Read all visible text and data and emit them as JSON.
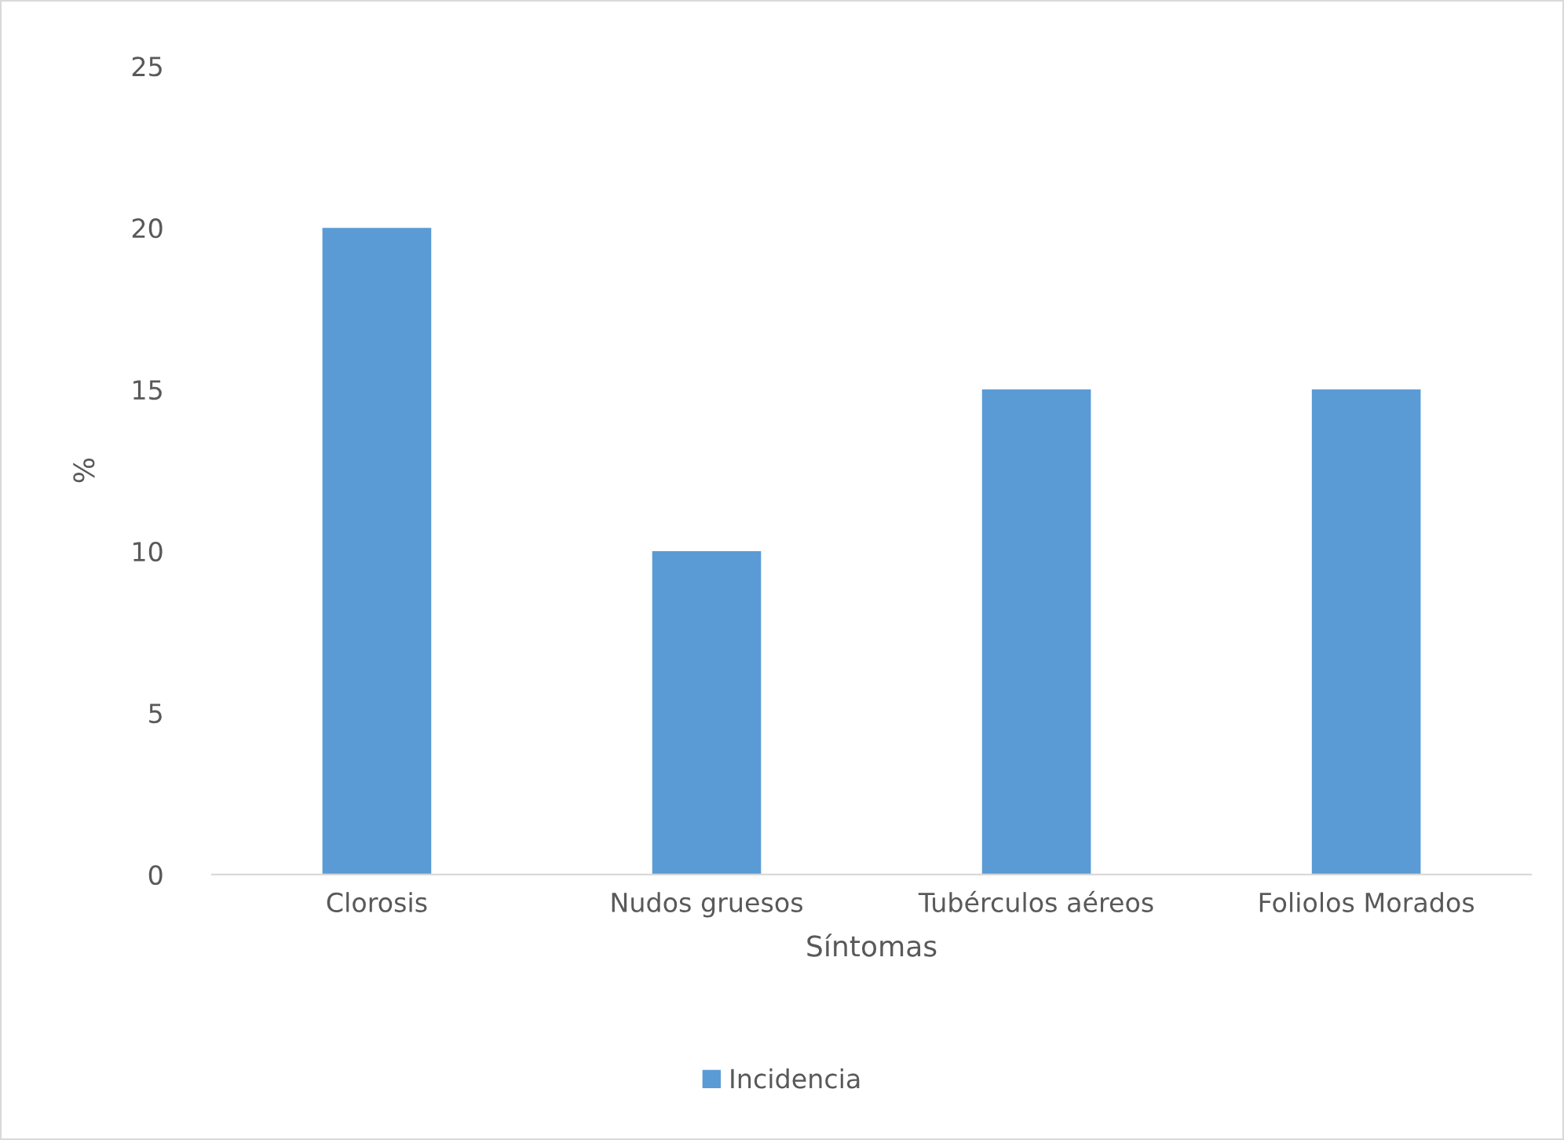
{
  "chart_data": {
    "type": "bar",
    "xlabel": "Síntomas",
    "ylabel": "%",
    "categories": [
      "Clorosis",
      "Nudos gruesos",
      "Tubérculos aéreos",
      "Foliolos Morados"
    ],
    "series": [
      {
        "name": "Incidencia",
        "color": "#5b9bd5",
        "values": [
          20,
          10,
          15,
          15
        ]
      }
    ],
    "ylim": [
      0,
      25
    ],
    "yticks": [
      0,
      5,
      10,
      15,
      20,
      25
    ],
    "grid": false,
    "legend": "bottom"
  }
}
